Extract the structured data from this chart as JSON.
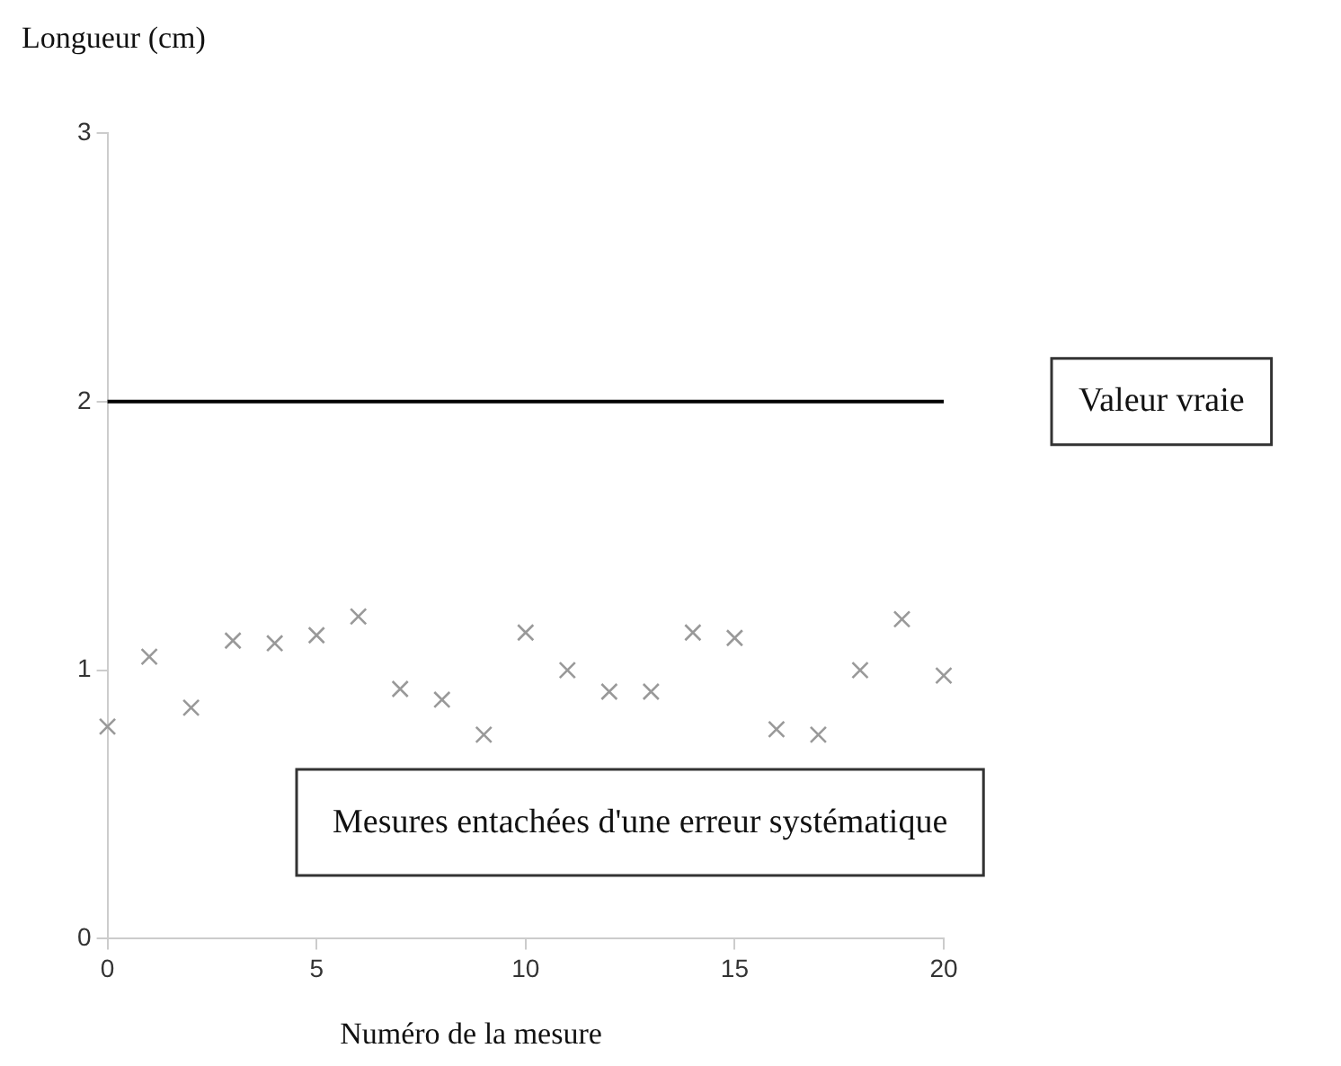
{
  "chart_data": {
    "type": "scatter",
    "ylabel": "Longueur (cm)",
    "xlabel": "Numéro de la mesure",
    "x": [
      0,
      1,
      2,
      3,
      4,
      5,
      6,
      7,
      8,
      9,
      10,
      11,
      12,
      13,
      14,
      15,
      16,
      17,
      18,
      19,
      20
    ],
    "series": [
      {
        "color": "#999999",
        "values": [
          0.79,
          1.05,
          0.86,
          1.11,
          1.1,
          1.13,
          1.2,
          0.93,
          0.89,
          0.76,
          1.14,
          1.0,
          0.92,
          0.92,
          1.14,
          1.12,
          0.78,
          0.76,
          1.0,
          1.19,
          0.98
        ]
      }
    ],
    "xlim": [
      0,
      20
    ],
    "xticks": [
      0,
      5,
      10,
      15,
      20
    ],
    "ylim": [
      0,
      3
    ],
    "yticks": [
      0,
      1,
      2,
      3
    ],
    "grid": false,
    "legend": false,
    "marker": "cross",
    "ref_lines": [
      {
        "axis": "y",
        "value": 2,
        "label": "Valeur vraie",
        "color": "#000000"
      }
    ],
    "annotations": [
      "Mesures entachées d'une erreur systématique"
    ]
  }
}
